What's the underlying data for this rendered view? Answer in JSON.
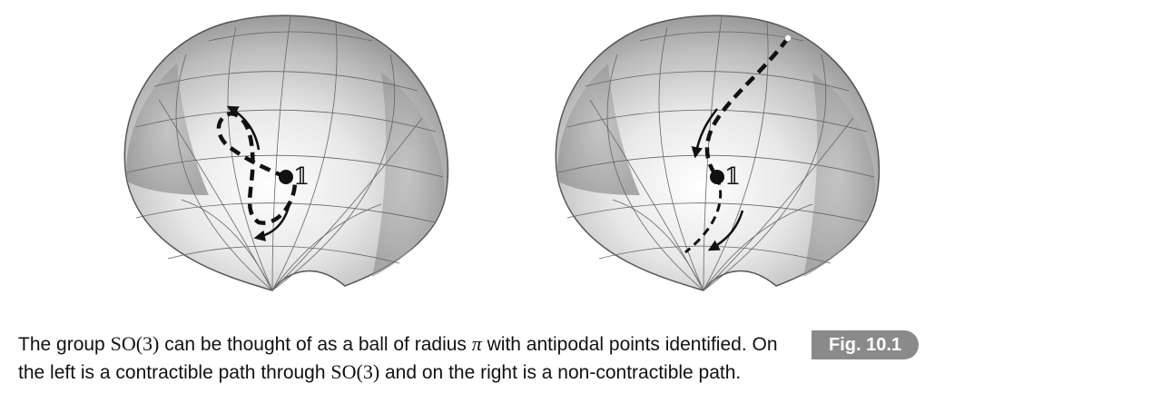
{
  "figure": {
    "left_ball": {
      "identity_label": "𝟙",
      "path_kind": "contractible"
    },
    "right_ball": {
      "identity_label": "𝟙",
      "path_kind": "non-contractible"
    }
  },
  "caption": {
    "t1": "The group ",
    "m1": "SO(3)",
    "t2": " can be thought of as a ball of radius ",
    "m2": "π",
    "t3": " with antipodal points identified. On the left is a contractible path through ",
    "m3": "SO(3)",
    "t4": " and on the right is a non-contractible path."
  },
  "fig_label": "Fig. 10.1"
}
